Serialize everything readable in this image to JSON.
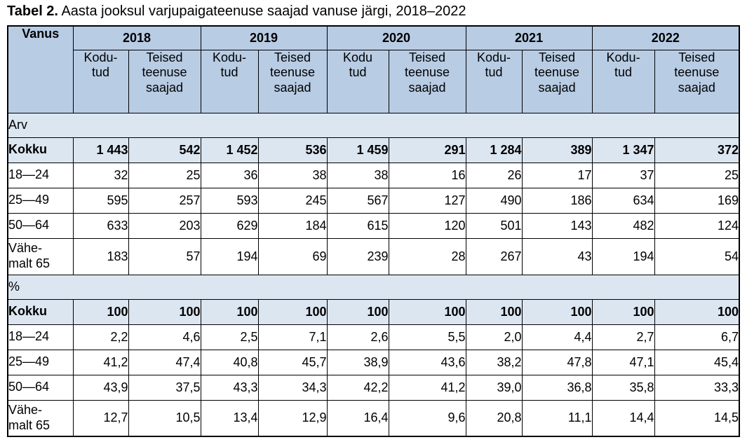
{
  "title": {
    "prefix": "Tabel 2.",
    "rest": " Aasta jooksul varjupaigateenuse saajad vanuse järgi, 2018–2022"
  },
  "colors": {
    "header_bg": "#b8cce4",
    "section_bg": "#dce6f1",
    "row_bg": "#ffffff",
    "border_color": "#000000",
    "text_color": "#000000",
    "page_bg": "#ffffff"
  },
  "chart_data": {
    "type": "table",
    "title": "Tabel 2. Aasta jooksul varjupaigateenuse saajad vanuse järgi, 2018–2022",
    "corner_header": "Vanus",
    "year_groups": [
      {
        "year": "2018",
        "subcolumns": [
          "Kodu-\ntud",
          "Teised\nteenuse\nsaajad"
        ]
      },
      {
        "year": "2019",
        "subcolumns": [
          "Kodu-\ntud",
          "Teised\nteenuse\nsaajad"
        ]
      },
      {
        "year": "2020",
        "subcolumns": [
          "Kodu\ntud",
          "Teised\nteenuse\nsaajad"
        ]
      },
      {
        "year": "2021",
        "subcolumns": [
          "Kodu-\ntud",
          "Teised\nteenuse\nsaajad"
        ]
      },
      {
        "year": "2022",
        "subcolumns": [
          "Kodu-\ntud",
          "Teised\nteenuse\nsaajad"
        ]
      }
    ],
    "sections": [
      {
        "label": "Arv",
        "rows": [
          {
            "label": "Kokku",
            "bold": true,
            "tall": false,
            "values": [
              "1 443",
              "542",
              "1 452",
              "536",
              "1 459",
              "291",
              "1 284",
              "389",
              "1 347",
              "372"
            ]
          },
          {
            "label": "18—24",
            "bold": false,
            "tall": false,
            "values": [
              "32",
              "25",
              "36",
              "38",
              "38",
              "16",
              "26",
              "17",
              "37",
              "25"
            ]
          },
          {
            "label": "25—49",
            "bold": false,
            "tall": false,
            "values": [
              "595",
              "257",
              "593",
              "245",
              "567",
              "127",
              "490",
              "186",
              "634",
              "169"
            ]
          },
          {
            "label": "50—64",
            "bold": false,
            "tall": false,
            "values": [
              "633",
              "203",
              "629",
              "184",
              "615",
              "120",
              "501",
              "143",
              "482",
              "124"
            ]
          },
          {
            "label": "Vähe-\nmalt 65",
            "bold": false,
            "tall": true,
            "values": [
              "183",
              "57",
              "194",
              "69",
              "239",
              "28",
              "267",
              "43",
              "194",
              "54"
            ]
          }
        ]
      },
      {
        "label": "%",
        "rows": [
          {
            "label": "Kokku",
            "bold": true,
            "tall": false,
            "values": [
              "100",
              "100",
              "100",
              "100",
              "100",
              "100",
              "100",
              "100",
              "100",
              "100"
            ]
          },
          {
            "label": "18—24",
            "bold": false,
            "tall": false,
            "values": [
              "2,2",
              "4,6",
              "2,5",
              "7,1",
              "2,6",
              "5,5",
              "2,0",
              "4,4",
              "2,7",
              "6,7"
            ]
          },
          {
            "label": "25—49",
            "bold": false,
            "tall": false,
            "values": [
              "41,2",
              "47,4",
              "40,8",
              "45,7",
              "38,9",
              "43,6",
              "38,2",
              "47,8",
              "47,1",
              "45,4"
            ]
          },
          {
            "label": "50—64",
            "bold": false,
            "tall": false,
            "values": [
              "43,9",
              "37,5",
              "43,3",
              "34,3",
              "42,2",
              "41,2",
              "39,0",
              "36,8",
              "35,8",
              "33,3"
            ]
          },
          {
            "label": "Vähe-\nmalt 65",
            "bold": false,
            "tall": true,
            "values": [
              "12,7",
              "10,5",
              "13,4",
              "12,9",
              "16,4",
              "9,6",
              "20,8",
              "11,1",
              "14,4",
              "14,5"
            ]
          }
        ]
      }
    ]
  }
}
